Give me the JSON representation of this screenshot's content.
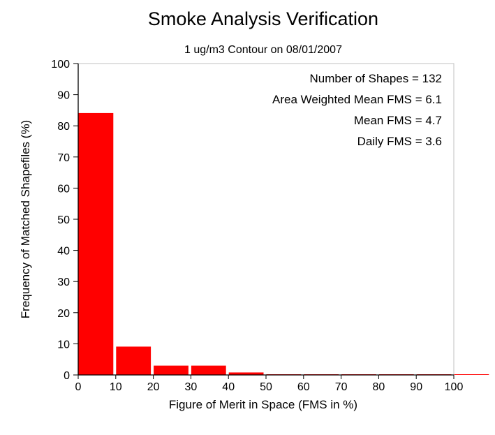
{
  "chart_data": {
    "type": "bar",
    "title": "Smoke Analysis Verification",
    "subtitle": "1 ug/m3 Contour on 08/01/2007",
    "xlabel": "Figure of Merit in Space (FMS in %)",
    "ylabel": "Frequency of Matched Shapefiles (%)",
    "xlim": [
      0,
      100
    ],
    "ylim": [
      0,
      100
    ],
    "xticks": [
      "0",
      "10",
      "20",
      "30",
      "40",
      "50",
      "60",
      "70",
      "80",
      "90",
      "100"
    ],
    "yticks": [
      "0",
      "10",
      "20",
      "30",
      "40",
      "50",
      "60",
      "70",
      "80",
      "90",
      "100"
    ],
    "bins": [
      [
        0,
        10
      ],
      [
        10,
        20
      ],
      [
        20,
        30
      ],
      [
        30,
        40
      ],
      [
        40,
        50
      ],
      [
        50,
        60
      ],
      [
        60,
        70
      ],
      [
        70,
        80
      ],
      [
        80,
        90
      ],
      [
        90,
        100
      ],
      [
        100,
        110
      ]
    ],
    "values": [
      84.1,
      9.1,
      3.0,
      3.0,
      0.8,
      0,
      0,
      0,
      0,
      0,
      0
    ],
    "bar_color": "#ff0000",
    "annotations": [
      "Number of Shapes = 132",
      "Area Weighted Mean FMS = 6.1",
      "Mean FMS = 4.7",
      "Daily FMS = 3.6"
    ],
    "grid": false
  }
}
